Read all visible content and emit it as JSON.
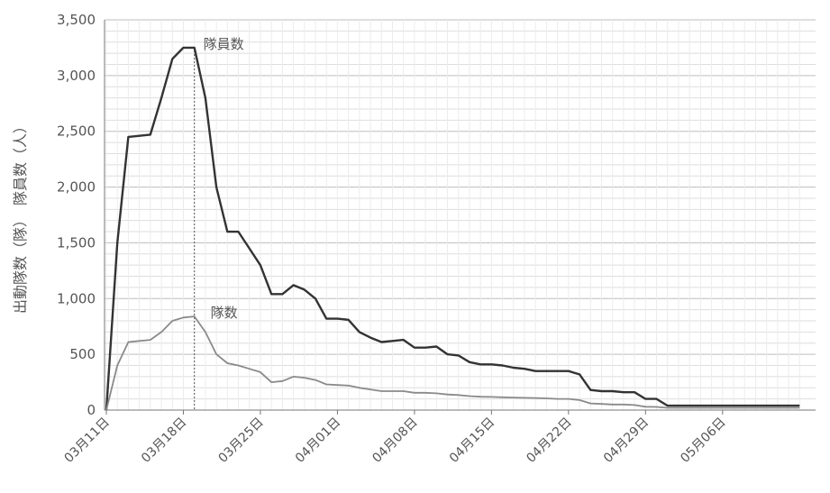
{
  "chart_data": {
    "type": "line",
    "ylabel": "出動隊数（隊）　隊員数（人）",
    "ylim": [
      0,
      3500
    ],
    "yticks": [
      "0",
      "500",
      "1,000",
      "1,500",
      "2,000",
      "2,500",
      "3,000",
      "3,500"
    ],
    "xticks": [
      "03月11日",
      "03月18日",
      "03月25日",
      "04月01日",
      "04月08日",
      "04月15日",
      "04月22日",
      "04月29日",
      "05月06日"
    ],
    "grid": true,
    "marker_line_day": 8,
    "series": [
      {
        "name": "隊員数",
        "color": "#333333",
        "points": [
          [
            0,
            0
          ],
          [
            1,
            1500
          ],
          [
            2,
            2450
          ],
          [
            3,
            2460
          ],
          [
            4,
            2470
          ],
          [
            5,
            2800
          ],
          [
            6,
            3150
          ],
          [
            7,
            3250
          ],
          [
            8,
            3250
          ],
          [
            9,
            2800
          ],
          [
            10,
            2000
          ],
          [
            11,
            1600
          ],
          [
            12,
            1600
          ],
          [
            13,
            1450
          ],
          [
            14,
            1300
          ],
          [
            15,
            1040
          ],
          [
            16,
            1040
          ],
          [
            17,
            1120
          ],
          [
            18,
            1080
          ],
          [
            19,
            1000
          ],
          [
            20,
            820
          ],
          [
            21,
            820
          ],
          [
            22,
            810
          ],
          [
            23,
            700
          ],
          [
            24,
            650
          ],
          [
            25,
            610
          ],
          [
            26,
            620
          ],
          [
            27,
            630
          ],
          [
            28,
            560
          ],
          [
            29,
            560
          ],
          [
            30,
            570
          ],
          [
            31,
            500
          ],
          [
            32,
            490
          ],
          [
            33,
            430
          ],
          [
            34,
            410
          ],
          [
            35,
            410
          ],
          [
            36,
            400
          ],
          [
            37,
            380
          ],
          [
            38,
            370
          ],
          [
            39,
            350
          ],
          [
            40,
            350
          ],
          [
            41,
            350
          ],
          [
            42,
            350
          ],
          [
            43,
            320
          ],
          [
            44,
            180
          ],
          [
            45,
            170
          ],
          [
            46,
            170
          ],
          [
            47,
            160
          ],
          [
            48,
            160
          ],
          [
            49,
            100
          ],
          [
            50,
            100
          ],
          [
            51,
            40
          ],
          [
            52,
            40
          ],
          [
            53,
            40
          ],
          [
            54,
            40
          ],
          [
            55,
            40
          ],
          [
            56,
            40
          ],
          [
            57,
            40
          ],
          [
            58,
            40
          ],
          [
            59,
            40
          ],
          [
            60,
            40
          ],
          [
            61,
            40
          ],
          [
            62,
            40
          ],
          [
            63,
            40
          ]
        ]
      },
      {
        "name": "隊数",
        "color": "#8a8a8a",
        "points": [
          [
            0,
            0
          ],
          [
            1,
            400
          ],
          [
            2,
            610
          ],
          [
            3,
            620
          ],
          [
            4,
            630
          ],
          [
            5,
            700
          ],
          [
            6,
            800
          ],
          [
            7,
            830
          ],
          [
            8,
            840
          ],
          [
            9,
            700
          ],
          [
            10,
            500
          ],
          [
            11,
            420
          ],
          [
            12,
            400
          ],
          [
            13,
            370
          ],
          [
            14,
            340
          ],
          [
            15,
            250
          ],
          [
            16,
            260
          ],
          [
            17,
            300
          ],
          [
            18,
            290
          ],
          [
            19,
            270
          ],
          [
            20,
            230
          ],
          [
            21,
            225
          ],
          [
            22,
            220
          ],
          [
            23,
            200
          ],
          [
            24,
            185
          ],
          [
            25,
            170
          ],
          [
            26,
            170
          ],
          [
            27,
            170
          ],
          [
            28,
            155
          ],
          [
            29,
            155
          ],
          [
            30,
            150
          ],
          [
            31,
            140
          ],
          [
            32,
            135
          ],
          [
            33,
            125
          ],
          [
            34,
            120
          ],
          [
            35,
            118
          ],
          [
            36,
            115
          ],
          [
            37,
            112
          ],
          [
            38,
            110
          ],
          [
            39,
            108
          ],
          [
            40,
            105
          ],
          [
            41,
            100
          ],
          [
            42,
            100
          ],
          [
            43,
            90
          ],
          [
            44,
            60
          ],
          [
            45,
            55
          ],
          [
            46,
            50
          ],
          [
            47,
            50
          ],
          [
            48,
            45
          ],
          [
            49,
            30
          ],
          [
            50,
            28
          ],
          [
            51,
            20
          ],
          [
            52,
            20
          ],
          [
            53,
            20
          ],
          [
            54,
            20
          ],
          [
            55,
            20
          ],
          [
            56,
            20
          ],
          [
            57,
            20
          ],
          [
            58,
            20
          ],
          [
            59,
            20
          ],
          [
            60,
            20
          ],
          [
            61,
            20
          ],
          [
            62,
            20
          ],
          [
            63,
            20
          ]
        ]
      }
    ]
  }
}
